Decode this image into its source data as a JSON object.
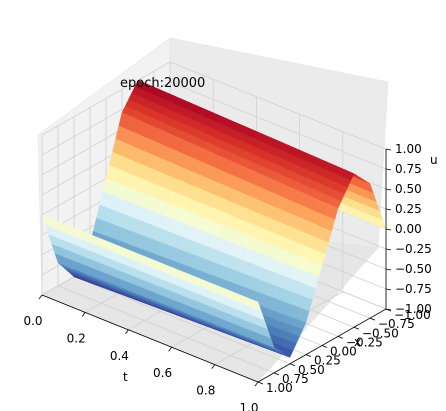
{
  "chart_data": {
    "type": "surface",
    "annotation": "epoch:20000",
    "xlabel": "t",
    "ylabel": "x",
    "zlabel": "u",
    "t_ticks": [
      "0.0",
      "0.2",
      "0.4",
      "0.6",
      "0.8",
      "1.0"
    ],
    "x_ticks": [
      "1.00",
      "0.75",
      "0.50",
      "0.25",
      "0.00",
      "−0.25",
      "−0.50",
      "−0.75",
      "−1.00"
    ],
    "u_ticks": [
      "1.00",
      "0.75",
      "0.50",
      "0.25",
      "0.00",
      "−0.25",
      "−0.50",
      "−0.75",
      "−1.00"
    ],
    "t_range": [
      0,
      1
    ],
    "x_range": [
      -1,
      1
    ],
    "u_range": [
      -1,
      1
    ],
    "grid": true,
    "colormap": "RdYlBu_r",
    "surface_samples": {
      "x": [
        -1.0,
        -0.75,
        -0.5,
        -0.25,
        0.0,
        0.25,
        0.5,
        0.75,
        1.0
      ],
      "u_at_t0": [
        0.0,
        0.71,
        1.0,
        0.71,
        0.0,
        -0.71,
        -1.0,
        -0.71,
        0.0
      ],
      "u_at_t1": [
        0.0,
        0.68,
        0.92,
        0.6,
        0.0,
        -0.6,
        -0.92,
        -0.68,
        0.0
      ]
    }
  }
}
